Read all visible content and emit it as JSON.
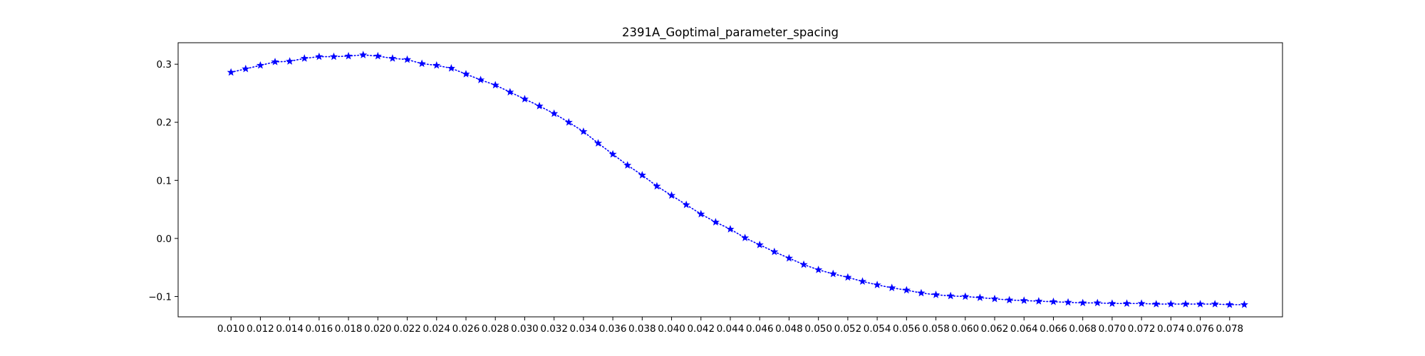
{
  "chart_data": {
    "type": "line",
    "title": "2391A_Goptimal_parameter_spacing",
    "xlabel": "",
    "ylabel": "",
    "xlim": [
      0.0064,
      0.0816
    ],
    "ylim": [
      -0.135,
      0.337
    ],
    "grid": false,
    "legend": "none",
    "line_style": "dotted",
    "marker": "star",
    "color": "#0000ff",
    "x_ticks": [
      "0.010",
      "0.012",
      "0.014",
      "0.016",
      "0.018",
      "0.020",
      "0.022",
      "0.024",
      "0.026",
      "0.028",
      "0.030",
      "0.032",
      "0.034",
      "0.036",
      "0.038",
      "0.040",
      "0.042",
      "0.044",
      "0.046",
      "0.048",
      "0.050",
      "0.052",
      "0.054",
      "0.056",
      "0.058",
      "0.060",
      "0.062",
      "0.064",
      "0.066",
      "0.068",
      "0.070",
      "0.072",
      "0.074",
      "0.076",
      "0.078"
    ],
    "y_ticks": [
      "0.3",
      "0.2",
      "0.1",
      "0.0",
      "−0.1"
    ],
    "y_tick_values": [
      0.3,
      0.2,
      0.1,
      0.0,
      -0.1
    ],
    "series": [
      {
        "x": [
          0.01,
          0.011,
          0.012,
          0.013,
          0.014,
          0.015,
          0.016,
          0.017,
          0.018,
          0.019,
          0.02,
          0.021,
          0.022,
          0.023,
          0.024,
          0.025,
          0.026,
          0.027,
          0.028,
          0.029,
          0.03,
          0.031,
          0.032,
          0.033,
          0.034,
          0.035,
          0.036,
          0.037,
          0.038,
          0.039,
          0.04,
          0.041,
          0.042,
          0.043,
          0.044,
          0.045,
          0.046,
          0.047,
          0.048,
          0.049,
          0.05,
          0.051,
          0.052,
          0.053,
          0.054,
          0.055,
          0.056,
          0.057,
          0.058,
          0.059,
          0.06,
          0.061,
          0.062,
          0.063,
          0.064,
          0.065,
          0.066,
          0.067,
          0.068,
          0.069,
          0.07,
          0.071,
          0.072,
          0.073,
          0.074,
          0.075,
          0.076,
          0.077,
          0.078,
          0.079
        ],
        "y": [
          0.286,
          0.292,
          0.298,
          0.304,
          0.305,
          0.31,
          0.313,
          0.313,
          0.314,
          0.316,
          0.314,
          0.31,
          0.308,
          0.301,
          0.298,
          0.293,
          0.283,
          0.273,
          0.264,
          0.252,
          0.24,
          0.228,
          0.215,
          0.2,
          0.184,
          0.164,
          0.145,
          0.126,
          0.109,
          0.09,
          0.074,
          0.058,
          0.042,
          0.028,
          0.016,
          0.001,
          -0.011,
          -0.023,
          -0.034,
          -0.045,
          -0.054,
          -0.061,
          -0.067,
          -0.074,
          -0.08,
          -0.085,
          -0.089,
          -0.094,
          -0.097,
          -0.099,
          -0.1,
          -0.102,
          -0.104,
          -0.106,
          -0.107,
          -0.108,
          -0.109,
          -0.11,
          -0.111,
          -0.111,
          -0.112,
          -0.112,
          -0.112,
          -0.113,
          -0.113,
          -0.113,
          -0.113,
          -0.113,
          -0.114,
          -0.114
        ]
      }
    ]
  }
}
